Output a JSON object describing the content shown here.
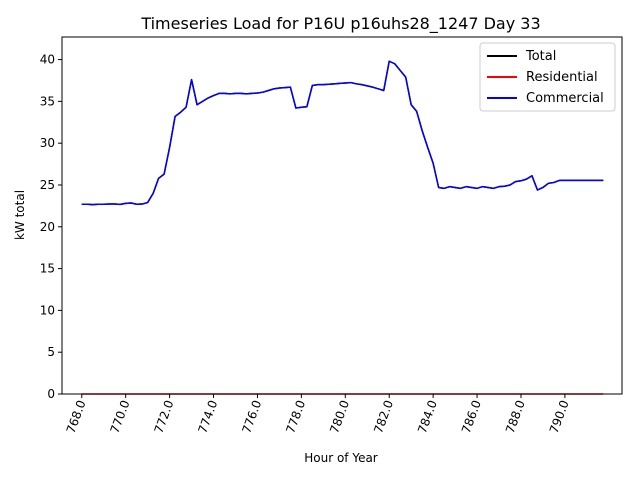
{
  "chart_data": {
    "type": "line",
    "title": "Timeseries Load for P16U p16uhs28_1247  Day 33",
    "xlabel": "Hour of Year",
    "ylabel": "kW total",
    "xlim": [
      767.1,
      792.6
    ],
    "ylim": [
      0,
      42.7
    ],
    "xticks": [
      768,
      770,
      772,
      774,
      776,
      778,
      780,
      782,
      784,
      786,
      788,
      790
    ],
    "xtick_labels": [
      "768.0",
      "770.0",
      "772.0",
      "774.0",
      "776.0",
      "778.0",
      "780.0",
      "782.0",
      "784.0",
      "786.0",
      "788.0",
      "790.0"
    ],
    "yticks": [
      0,
      5,
      10,
      15,
      20,
      25,
      30,
      35,
      40
    ],
    "ytick_labels": [
      "0",
      "5",
      "10",
      "15",
      "20",
      "25",
      "30",
      "35",
      "40"
    ],
    "legend_position": "top-right",
    "grid": false,
    "x": [
      768.0,
      768.25,
      768.5,
      768.75,
      769.0,
      769.25,
      769.5,
      769.75,
      770.0,
      770.25,
      770.5,
      770.75,
      771.0,
      771.25,
      771.5,
      771.75,
      772.0,
      772.25,
      772.5,
      772.75,
      773.0,
      773.25,
      773.5,
      773.75,
      774.0,
      774.25,
      774.5,
      774.75,
      775.0,
      775.25,
      775.5,
      775.75,
      776.0,
      776.25,
      776.5,
      776.75,
      777.0,
      777.25,
      777.5,
      777.75,
      778.0,
      778.25,
      778.5,
      778.75,
      779.0,
      779.25,
      779.5,
      779.75,
      780.0,
      780.25,
      780.5,
      780.75,
      781.0,
      781.25,
      781.5,
      781.75,
      782.0,
      782.25,
      782.5,
      782.75,
      783.0,
      783.25,
      783.5,
      783.75,
      784.0,
      784.25,
      784.5,
      784.75,
      785.0,
      785.25,
      785.5,
      785.75,
      786.0,
      786.25,
      786.5,
      786.75,
      787.0,
      787.25,
      787.5,
      787.75,
      788.0,
      788.25,
      788.5,
      788.75,
      789.0,
      789.25,
      789.5,
      789.75,
      790.0,
      790.25,
      790.5,
      790.75,
      791.0,
      791.25,
      791.5,
      791.75
    ],
    "series": [
      {
        "name": "Total",
        "color": "#000000",
        "values": [
          22.7,
          22.7,
          22.65,
          22.7,
          22.7,
          22.72,
          22.72,
          22.68,
          22.8,
          22.85,
          22.7,
          22.72,
          22.9,
          24.0,
          25.8,
          26.3,
          29.5,
          33.2,
          33.7,
          34.3,
          37.6,
          34.6,
          35.0,
          35.4,
          35.7,
          35.95,
          35.95,
          35.9,
          35.95,
          35.95,
          35.9,
          35.95,
          36.0,
          36.1,
          36.3,
          36.5,
          36.6,
          36.65,
          36.7,
          34.2,
          34.3,
          34.35,
          36.9,
          37.0,
          37.0,
          37.05,
          37.1,
          37.15,
          37.2,
          37.25,
          37.1,
          37.0,
          36.85,
          36.7,
          36.5,
          36.3,
          39.8,
          39.5,
          38.7,
          37.9,
          34.6,
          33.8,
          31.5,
          29.5,
          27.6,
          24.7,
          24.6,
          24.8,
          24.7,
          24.6,
          24.8,
          24.7,
          24.6,
          24.8,
          24.7,
          24.6,
          24.8,
          24.85,
          25.0,
          25.4,
          25.5,
          25.7,
          26.1,
          24.4,
          24.7,
          25.2,
          25.3,
          25.55,
          25.55,
          25.55,
          25.55,
          25.55,
          25.55,
          25.55,
          25.55,
          25.55
        ]
      },
      {
        "name": "Residential",
        "color": "#ff0000",
        "values": [
          0,
          0,
          0,
          0,
          0,
          0,
          0,
          0,
          0,
          0,
          0,
          0,
          0,
          0,
          0,
          0,
          0,
          0,
          0,
          0,
          0,
          0,
          0,
          0,
          0,
          0,
          0,
          0,
          0,
          0,
          0,
          0,
          0,
          0,
          0,
          0,
          0,
          0,
          0,
          0,
          0,
          0,
          0,
          0,
          0,
          0,
          0,
          0,
          0,
          0,
          0,
          0,
          0,
          0,
          0,
          0,
          0,
          0,
          0,
          0,
          0,
          0,
          0,
          0,
          0,
          0,
          0,
          0,
          0,
          0,
          0,
          0,
          0,
          0,
          0,
          0,
          0,
          0,
          0,
          0,
          0,
          0,
          0,
          0,
          0,
          0,
          0,
          0,
          0,
          0,
          0,
          0,
          0,
          0,
          0,
          0
        ]
      },
      {
        "name": "Commercial",
        "color": "#0000ff",
        "values": [
          22.7,
          22.7,
          22.65,
          22.7,
          22.7,
          22.72,
          22.72,
          22.68,
          22.8,
          22.85,
          22.7,
          22.72,
          22.9,
          24.0,
          25.8,
          26.3,
          29.5,
          33.2,
          33.7,
          34.3,
          37.6,
          34.6,
          35.0,
          35.4,
          35.7,
          35.95,
          35.95,
          35.9,
          35.95,
          35.95,
          35.9,
          35.95,
          36.0,
          36.1,
          36.3,
          36.5,
          36.6,
          36.65,
          36.7,
          34.2,
          34.3,
          34.35,
          36.9,
          37.0,
          37.0,
          37.05,
          37.1,
          37.15,
          37.2,
          37.25,
          37.1,
          37.0,
          36.85,
          36.7,
          36.5,
          36.3,
          39.8,
          39.5,
          38.7,
          37.9,
          34.6,
          33.8,
          31.5,
          29.5,
          27.6,
          24.7,
          24.6,
          24.8,
          24.7,
          24.6,
          24.8,
          24.7,
          24.6,
          24.8,
          24.7,
          24.6,
          24.8,
          24.85,
          25.0,
          25.4,
          25.5,
          25.7,
          26.1,
          24.4,
          24.7,
          25.2,
          25.3,
          25.55,
          25.55,
          25.55,
          25.55,
          25.55,
          25.55,
          25.55,
          25.55,
          25.55
        ]
      }
    ]
  }
}
